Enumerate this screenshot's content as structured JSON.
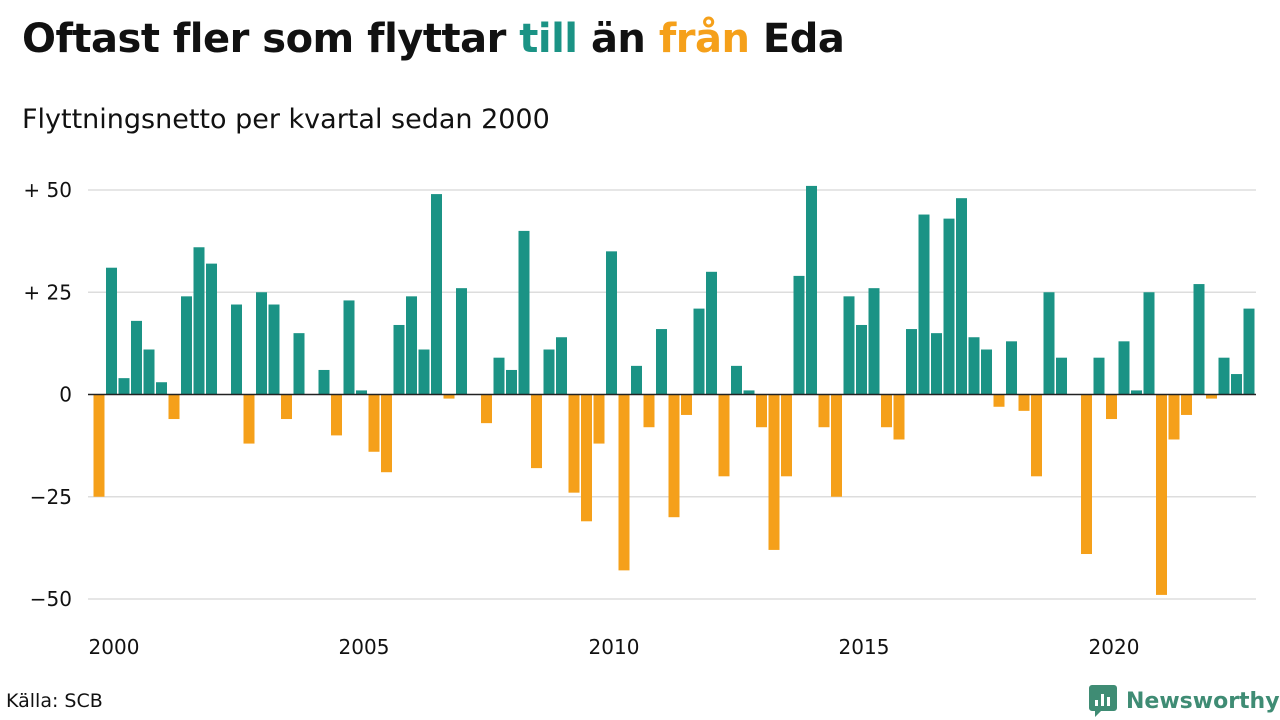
{
  "header": {
    "title_parts": [
      {
        "text": "Oftast fler som flyttar ",
        "color": "#111111"
      },
      {
        "text": "till",
        "color": "#1b9385"
      },
      {
        "text": " än ",
        "color": "#111111"
      },
      {
        "text": "från",
        "color": "#f5a01a"
      },
      {
        "text": " Eda",
        "color": "#111111"
      }
    ],
    "subtitle": "Flyttningsnetto per kvartal sedan 2000"
  },
  "footer": {
    "source": "Källa: SCB",
    "brand": "Newsworthy",
    "brand_icon": "newsworthy-logo-icon"
  },
  "colors": {
    "positive": "#1b9385",
    "negative": "#f5a01a",
    "grid": "#dddddd",
    "zero_line": "#222222",
    "brand": "#3f8c74"
  },
  "chart_data": {
    "type": "bar",
    "title": "Oftast fler som flyttar till än från Eda",
    "subtitle": "Flyttningsnetto per kvartal sedan 2000",
    "xlabel": "",
    "ylabel": "",
    "x_start": "2000 Q1",
    "x_ticks": [
      "2000",
      "2005",
      "2010",
      "2015",
      "2020"
    ],
    "y_ticks": [
      {
        "value": 50,
        "label": "+ 50"
      },
      {
        "value": 25,
        "label": "+ 25"
      },
      {
        "value": 0,
        "label": "0"
      },
      {
        "value": -25,
        "label": "−25"
      },
      {
        "value": -50,
        "label": "−50"
      }
    ],
    "ylim": [
      -50,
      50
    ],
    "grid": true,
    "values": [
      -25,
      31,
      4,
      18,
      11,
      3,
      -6,
      24,
      36,
      32,
      0,
      22,
      -12,
      25,
      22,
      -6,
      15,
      0,
      6,
      -10,
      23,
      1,
      -14,
      -19,
      17,
      24,
      11,
      49,
      -1,
      26,
      0,
      -7,
      9,
      6,
      40,
      -18,
      11,
      14,
      -24,
      -31,
      -12,
      35,
      -43,
      7,
      -8,
      16,
      -30,
      -5,
      21,
      30,
      -20,
      7,
      1,
      -8,
      -38,
      -20,
      29,
      51,
      -8,
      -25,
      24,
      17,
      26,
      -8,
      -11,
      16,
      44,
      15,
      43,
      48,
      14,
      11,
      -3,
      13,
      -4,
      -20,
      25,
      9,
      0,
      -39,
      9,
      -6,
      13,
      1,
      25,
      -49,
      -11,
      -5,
      27,
      -1,
      9,
      5,
      21
    ]
  }
}
